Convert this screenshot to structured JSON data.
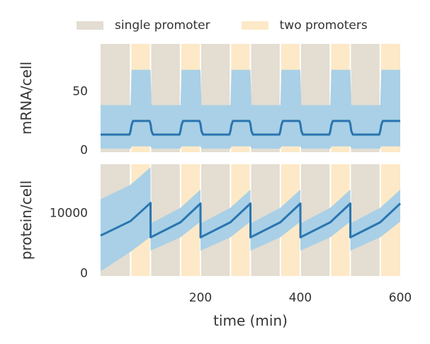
{
  "colors": {
    "single": "#e3ddd2",
    "two": "#fde9c7",
    "band": "#a9d0e6",
    "line": "#2a75b0"
  },
  "legend": {
    "single_label": "single promoter",
    "two_label": "two promoters"
  },
  "chart_data": [
    {
      "type": "line",
      "title": "",
      "xlabel": "",
      "ylabel": "mRNA/cell",
      "xlim": [
        0,
        600
      ],
      "ylim": [
        -2,
        90
      ],
      "yticks": [
        0,
        50
      ],
      "ytick_labels": [
        "0",
        "50"
      ],
      "x_tick_labels_visible": false,
      "background_shading": {
        "cycle_period": 100,
        "single_promoter_windows": [
          [
            0,
            60
          ],
          [
            100,
            160
          ],
          [
            200,
            260
          ],
          [
            300,
            360
          ],
          [
            400,
            460
          ],
          [
            500,
            560
          ]
        ],
        "two_promoters_windows": [
          [
            60,
            100
          ],
          [
            160,
            200
          ],
          [
            260,
            300
          ],
          [
            360,
            400
          ],
          [
            460,
            500
          ],
          [
            560,
            600
          ]
        ]
      },
      "series": [
        {
          "role": "mean",
          "x": [
            0,
            58,
            60,
            62,
            65,
            98,
            100,
            102,
            105,
            158,
            160,
            162,
            165,
            198,
            200,
            202,
            205,
            258,
            260,
            262,
            265,
            298,
            300,
            302,
            305,
            358,
            360,
            362,
            365,
            398,
            400,
            402,
            405,
            458,
            460,
            462,
            465,
            498,
            500,
            502,
            505,
            558,
            560,
            562,
            565,
            600
          ],
          "values": [
            13,
            13,
            16,
            21,
            24.5,
            24.5,
            22,
            16,
            13,
            13,
            16,
            21,
            24.5,
            24.5,
            22,
            16,
            13,
            13,
            16,
            21,
            24.5,
            24.5,
            22,
            16,
            13,
            13,
            16,
            21,
            24.5,
            24.5,
            22,
            16,
            13,
            13,
            16,
            21,
            24.5,
            24.5,
            22,
            16,
            13,
            13,
            16,
            21,
            24.5,
            24.5
          ]
        },
        {
          "role": "range",
          "x": [
            0,
            60,
            62,
            100,
            102,
            160,
            162,
            200,
            202,
            260,
            262,
            300,
            302,
            360,
            362,
            400,
            402,
            460,
            462,
            500,
            502,
            560,
            562,
            600
          ],
          "lower": [
            1,
            1,
            3,
            3,
            1,
            1,
            3,
            3,
            1,
            1,
            3,
            3,
            1,
            1,
            3,
            3,
            1,
            1,
            3,
            3,
            1,
            1,
            3,
            3
          ],
          "upper": [
            38,
            38,
            68,
            68,
            38,
            38,
            68,
            68,
            38,
            38,
            68,
            68,
            38,
            38,
            68,
            68,
            38,
            38,
            68,
            68,
            38,
            38,
            68,
            68
          ]
        }
      ]
    },
    {
      "type": "line",
      "title": "",
      "xlabel": "time (min)",
      "ylabel": "protein/cell",
      "xlim": [
        0,
        600
      ],
      "ylim": [
        -500,
        18000
      ],
      "xticks": [
        200,
        400,
        600
      ],
      "xtick_labels": [
        "200",
        "400",
        "600"
      ],
      "yticks": [
        0,
        10000
      ],
      "ytick_labels": [
        "0",
        "10000"
      ],
      "background_shading": {
        "cycle_period": 100,
        "single_promoter_windows": [
          [
            0,
            60
          ],
          [
            100,
            160
          ],
          [
            200,
            260
          ],
          [
            300,
            360
          ],
          [
            400,
            460
          ],
          [
            500,
            560
          ]
        ],
        "two_promoters_windows": [
          [
            60,
            100
          ],
          [
            160,
            200
          ],
          [
            260,
            300
          ],
          [
            360,
            400
          ],
          [
            460,
            500
          ],
          [
            560,
            600
          ]
        ]
      },
      "series": [
        {
          "role": "mean",
          "x": [
            0,
            60,
            100,
            100.1,
            160,
            200,
            200.1,
            260,
            300,
            300.1,
            360,
            400,
            400.1,
            460,
            500,
            500.1,
            560,
            600
          ],
          "values": [
            6200,
            8600,
            11600,
            5900,
            8400,
            11500,
            5900,
            8400,
            11500,
            5900,
            8400,
            11500,
            5900,
            8400,
            11500,
            5900,
            8400,
            11500
          ]
        },
        {
          "role": "range",
          "x": [
            0,
            60,
            100,
            100.1,
            160,
            200,
            200.1,
            260,
            300,
            300.1,
            360,
            400,
            400.1,
            460,
            500,
            500.1,
            560,
            600
          ],
          "lower": [
            300,
            3500,
            6000,
            3700,
            5900,
            8500,
            3700,
            5900,
            8500,
            3700,
            5900,
            8500,
            3700,
            5900,
            8500,
            3700,
            5900,
            8500
          ],
          "upper": [
            12200,
            14600,
            17500,
            8200,
            10800,
            13800,
            8200,
            10800,
            13800,
            8200,
            10800,
            13800,
            8200,
            10800,
            13800,
            8200,
            10800,
            13800
          ]
        }
      ]
    }
  ]
}
